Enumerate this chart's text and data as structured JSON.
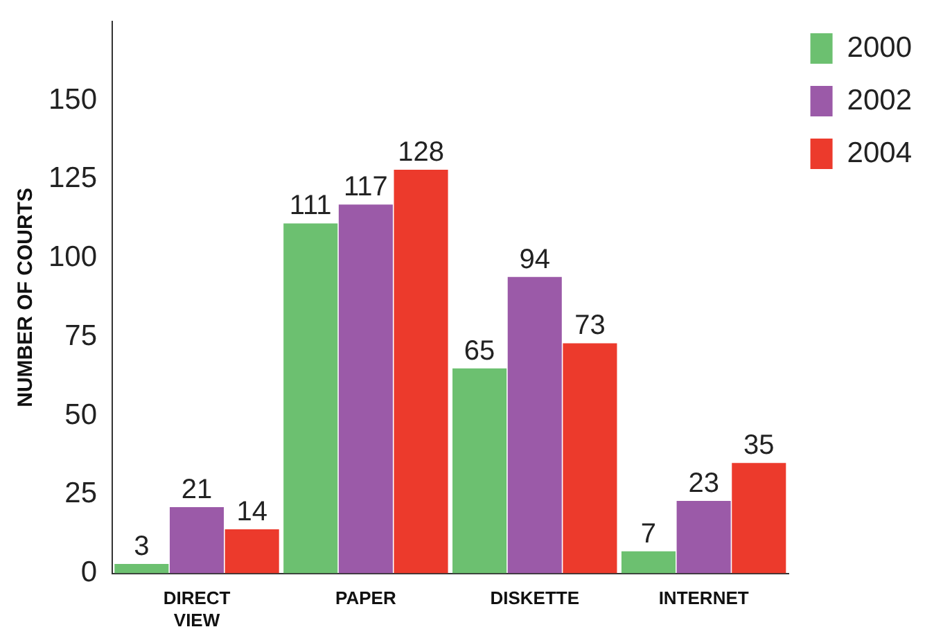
{
  "chart_data": {
    "type": "bar",
    "ylabel": "NUMBER OF COURTS",
    "categories": [
      "DIRECT VIEW",
      "PAPER",
      "DISKETTE",
      "INTERNET"
    ],
    "series": [
      {
        "name": "2000",
        "color": "#6cc070",
        "values": [
          3,
          111,
          65,
          7
        ]
      },
      {
        "name": "2002",
        "color": "#9b5aa8",
        "values": [
          21,
          117,
          94,
          23
        ]
      },
      {
        "name": "2004",
        "color": "#ec3a2c",
        "values": [
          14,
          128,
          73,
          35
        ]
      }
    ],
    "ylim": [
      0,
      175
    ],
    "yticks": [
      0,
      25,
      50,
      75,
      100,
      125,
      150
    ],
    "grid": false,
    "legend": "top right",
    "data_labels": true
  }
}
